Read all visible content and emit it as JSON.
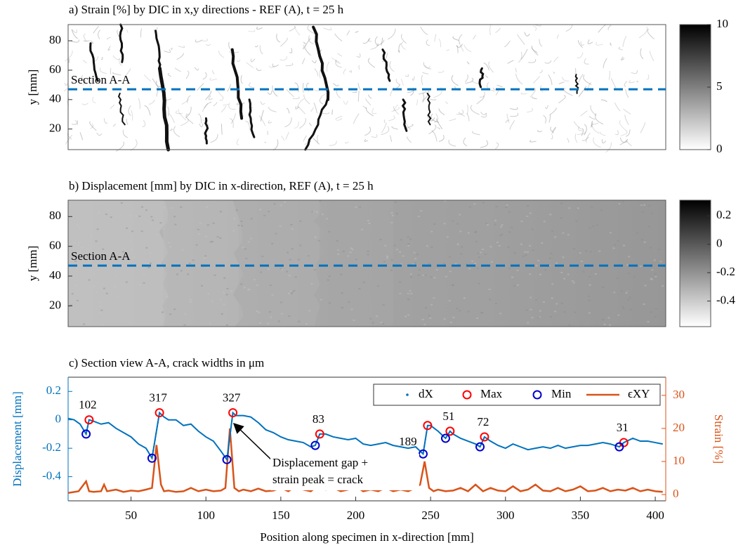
{
  "chart_data": [
    {
      "type": "heatmap",
      "title": "a) Strain [%] by DIC in x,y directions - REF (A), t = 25 h",
      "ylabel": "y [mm]",
      "ylim": [
        6,
        91
      ],
      "yticks": [
        20,
        40,
        60,
        80
      ],
      "clim": [
        0,
        10
      ],
      "cticks": [
        0,
        5,
        10
      ],
      "section_label": "Section A-A",
      "section_y": 47,
      "section_color": "#0072BD"
    },
    {
      "type": "heatmap",
      "title": "b) Displacement [mm] by DIC in x-direction, REF (A), t = 25 h",
      "ylabel": "y [mm]",
      "ylim": [
        6,
        91
      ],
      "yticks": [
        20,
        40,
        60,
        80
      ],
      "clim": [
        -0.58,
        0.31
      ],
      "cticks": [
        -0.4,
        -0.2,
        0,
        0.2
      ],
      "section_label": "Section A-A",
      "section_y": 47,
      "section_color": "#0072BD"
    },
    {
      "type": "line",
      "title": "c) Section view A-A, crack widths in μm",
      "xlabel": "Position along specimen in x-direction [mm]",
      "ylabel": "Displacement [mm]",
      "y2label": "Strain [%]",
      "xlim": [
        8,
        407
      ],
      "xticks": [
        50,
        100,
        150,
        200,
        250,
        300,
        350,
        400
      ],
      "ylim": [
        -0.57,
        0.3
      ],
      "yticks": [
        -0.4,
        -0.2,
        0,
        0.2
      ],
      "y2lim": [
        -1.9,
        35.5
      ],
      "y2ticks": [
        0,
        10,
        20,
        30
      ],
      "series": [
        {
          "name": "dX",
          "color": "#0072BD",
          "x": [
            8,
            12,
            16,
            20,
            22,
            25,
            30,
            35,
            40,
            45,
            50,
            55,
            60,
            64,
            69,
            72,
            75,
            80,
            85,
            90,
            95,
            100,
            105,
            110,
            114,
            118,
            120,
            125,
            130,
            135,
            140,
            145,
            150,
            155,
            160,
            165,
            170,
            173,
            176,
            180,
            185,
            190,
            195,
            200,
            205,
            210,
            215,
            220,
            225,
            230,
            235,
            240,
            245,
            248,
            250,
            255,
            260,
            263,
            265,
            270,
            275,
            280,
            283,
            286,
            290,
            295,
            300,
            305,
            310,
            315,
            320,
            325,
            330,
            335,
            340,
            345,
            350,
            355,
            360,
            365,
            370,
            376,
            379,
            385,
            390,
            395,
            400,
            405
          ],
          "values": [
            0.01,
            0.0,
            -0.03,
            -0.1,
            0.0,
            -0.01,
            -0.03,
            -0.02,
            -0.06,
            -0.09,
            -0.12,
            -0.17,
            -0.2,
            -0.27,
            0.05,
            0.02,
            0.0,
            0.0,
            -0.04,
            -0.03,
            -0.08,
            -0.12,
            -0.15,
            -0.22,
            -0.28,
            0.05,
            0.03,
            0.03,
            0.02,
            -0.02,
            -0.07,
            -0.09,
            -0.12,
            -0.14,
            -0.15,
            -0.16,
            -0.19,
            -0.18,
            -0.1,
            -0.1,
            -0.12,
            -0.13,
            -0.14,
            -0.13,
            -0.17,
            -0.18,
            -0.17,
            -0.16,
            -0.18,
            -0.19,
            -0.2,
            -0.19,
            -0.24,
            -0.04,
            -0.04,
            -0.08,
            -0.13,
            -0.08,
            -0.1,
            -0.13,
            -0.15,
            -0.17,
            -0.19,
            -0.12,
            -0.15,
            -0.18,
            -0.2,
            -0.17,
            -0.19,
            -0.21,
            -0.2,
            -0.19,
            -0.2,
            -0.18,
            -0.2,
            -0.19,
            -0.18,
            -0.18,
            -0.17,
            -0.16,
            -0.17,
            -0.19,
            -0.16,
            -0.13,
            -0.15,
            -0.15,
            -0.16,
            -0.17
          ]
        },
        {
          "name": "Max",
          "color": "#FF0000",
          "x": [
            22,
            69,
            118,
            176,
            248,
            263,
            286,
            379
          ],
          "values": [
            0.0,
            0.05,
            0.05,
            -0.1,
            -0.04,
            -0.08,
            -0.12,
            -0.16
          ]
        },
        {
          "name": "Min",
          "color": "#0000CC",
          "x": [
            20,
            64,
            114,
            173,
            245,
            260,
            283,
            376
          ],
          "values": [
            -0.1,
            -0.27,
            -0.28,
            -0.18,
            -0.24,
            -0.13,
            -0.19,
            -0.19
          ]
        },
        {
          "name": "ϵXY",
          "color": "#D95319",
          "axis": "y2",
          "x": [
            8,
            15,
            20,
            22,
            25,
            30,
            32,
            34,
            40,
            45,
            50,
            55,
            60,
            64,
            67,
            70,
            72,
            75,
            80,
            85,
            90,
            95,
            100,
            105,
            110,
            113,
            116,
            119,
            122,
            125,
            130,
            135,
            140,
            145,
            150,
            155,
            160,
            165,
            170,
            173,
            175,
            178,
            180,
            185,
            190,
            195,
            200,
            205,
            210,
            215,
            220,
            225,
            230,
            235,
            240,
            243,
            246,
            249,
            252,
            255,
            260,
            265,
            270,
            275,
            280,
            285,
            290,
            295,
            300,
            305,
            310,
            315,
            320,
            325,
            330,
            335,
            340,
            345,
            350,
            355,
            360,
            365,
            370,
            375,
            380,
            385,
            390,
            395,
            400,
            405
          ],
          "values": [
            0.5,
            1,
            4,
            1,
            0.8,
            1,
            3,
            1,
            1.5,
            0.8,
            1.2,
            1,
            1.5,
            2,
            15,
            3,
            1,
            1.2,
            0.8,
            1,
            2,
            1,
            1.5,
            1,
            1.2,
            2,
            20,
            2,
            1,
            1.5,
            1,
            1.8,
            1,
            1.2,
            2,
            1,
            2.5,
            1.5,
            1,
            2,
            7,
            2,
            1.5,
            2,
            1,
            1.5,
            2.5,
            1,
            1.5,
            1,
            2,
            1,
            1.5,
            1,
            2,
            3,
            10,
            2,
            1,
            1.5,
            1,
            1.2,
            2,
            1,
            3,
            1,
            2,
            1.2,
            1,
            2.5,
            1,
            1.5,
            3,
            1.2,
            1,
            2,
            1,
            1.5,
            2.5,
            1,
            1.2,
            2,
            1,
            1.5,
            1.2,
            2,
            1,
            1.5,
            1,
            0.8
          ]
        }
      ],
      "crack_widths": [
        102,
        317,
        327,
        83,
        189,
        51,
        72,
        31
      ],
      "annotation": [
        "Displacement gap +",
        "strain peak = crack"
      ]
    }
  ]
}
